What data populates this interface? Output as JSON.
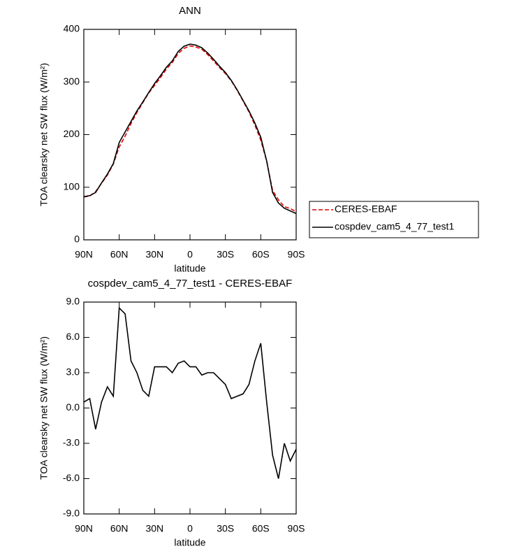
{
  "chart_data": [
    {
      "type": "line",
      "title": "ANN",
      "x_label": "latitude",
      "y_label": "TOA clearsky net SW flux (W/m²)",
      "x": [
        90,
        85,
        80,
        75,
        70,
        65,
        60,
        55,
        50,
        45,
        40,
        35,
        30,
        25,
        20,
        15,
        10,
        5,
        0,
        -5,
        -10,
        -15,
        -20,
        -25,
        -30,
        -35,
        -40,
        -45,
        -50,
        -55,
        -60,
        -65,
        -70,
        -75,
        -80,
        -85,
        -90
      ],
      "xlim": [
        90,
        -90
      ],
      "xticks": [
        {
          "value": 90,
          "label": "90N"
        },
        {
          "value": 60,
          "label": "60N"
        },
        {
          "value": 30,
          "label": "30N"
        },
        0,
        {
          "value": -30,
          "label": "30S"
        },
        {
          "value": -60,
          "label": "60S"
        },
        {
          "value": -90,
          "label": "90S"
        }
      ],
      "ylim": [
        0,
        400
      ],
      "yticks": [
        0,
        100,
        200,
        300,
        400
      ],
      "legend": "right",
      "series": [
        {
          "name": "CERES-EBAF",
          "color": "#e00000",
          "dashed": true,
          "values": [
            81.5,
            83.2,
            91.8,
            107.5,
            123.2,
            144,
            176.5,
            197,
            221,
            242,
            260.5,
            279,
            293.5,
            308.5,
            324.5,
            337,
            354.2,
            364,
            368.5,
            366.5,
            362.2,
            352,
            340,
            327.5,
            316,
            302.2,
            284,
            263.8,
            243,
            218,
            189.5,
            149.5,
            94,
            76,
            63,
            59.5,
            53.5
          ]
        },
        {
          "name": "cospdev_cam5_4_77_test1",
          "color": "#000000",
          "dashed": false,
          "values": [
            82,
            84,
            90,
            108,
            125,
            145,
            185,
            205,
            225,
            245,
            262,
            280,
            297,
            312,
            328,
            340,
            358,
            368,
            372,
            370,
            365,
            355,
            343,
            330,
            318,
            303,
            285,
            265,
            245,
            222,
            195,
            150,
            90,
            70,
            60,
            55,
            50
          ]
        }
      ]
    },
    {
      "type": "line",
      "title": "cospdev_cam5_4_77_test1 - CERES-EBAF",
      "x_label": "latitude",
      "y_label": "TOA clearsky net SW flux (W/m²)",
      "x": [
        90,
        85,
        80,
        75,
        70,
        65,
        60,
        55,
        50,
        45,
        40,
        35,
        30,
        25,
        20,
        15,
        10,
        5,
        0,
        -5,
        -10,
        -15,
        -20,
        -25,
        -30,
        -35,
        -40,
        -45,
        -50,
        -55,
        -60,
        -65,
        -70,
        -75,
        -80,
        -85,
        -90
      ],
      "xlim": [
        90,
        -90
      ],
      "xticks": [
        {
          "value": 90,
          "label": "90N"
        },
        {
          "value": 60,
          "label": "60N"
        },
        {
          "value": 30,
          "label": "30N"
        },
        0,
        {
          "value": -30,
          "label": "30S"
        },
        {
          "value": -60,
          "label": "60S"
        },
        {
          "value": -90,
          "label": "90S"
        }
      ],
      "ylim": [
        -9,
        9
      ],
      "yticks": [
        {
          "value": -9,
          "label": "-9.0"
        },
        {
          "value": -6,
          "label": "-6.0"
        },
        {
          "value": -3,
          "label": "-3.0"
        },
        {
          "value": 0,
          "label": "0.0"
        },
        {
          "value": 3,
          "label": "3.0"
        },
        {
          "value": 6,
          "label": "6.0"
        },
        {
          "value": 9,
          "label": "9.0"
        }
      ],
      "series": [
        {
          "color": "#000000",
          "dashed": false,
          "values": [
            0.5,
            0.8,
            -1.8,
            0.5,
            1.8,
            1.0,
            8.5,
            8.0,
            4.0,
            3.0,
            1.5,
            1.0,
            3.5,
            3.5,
            3.5,
            3.0,
            3.8,
            4.0,
            3.5,
            3.5,
            2.8,
            3.0,
            3.0,
            2.5,
            2.0,
            0.8,
            1.0,
            1.2,
            2.0,
            4.0,
            5.5,
            0.5,
            -4.0,
            -6.0,
            -3.0,
            -4.5,
            -3.5
          ]
        }
      ]
    }
  ]
}
